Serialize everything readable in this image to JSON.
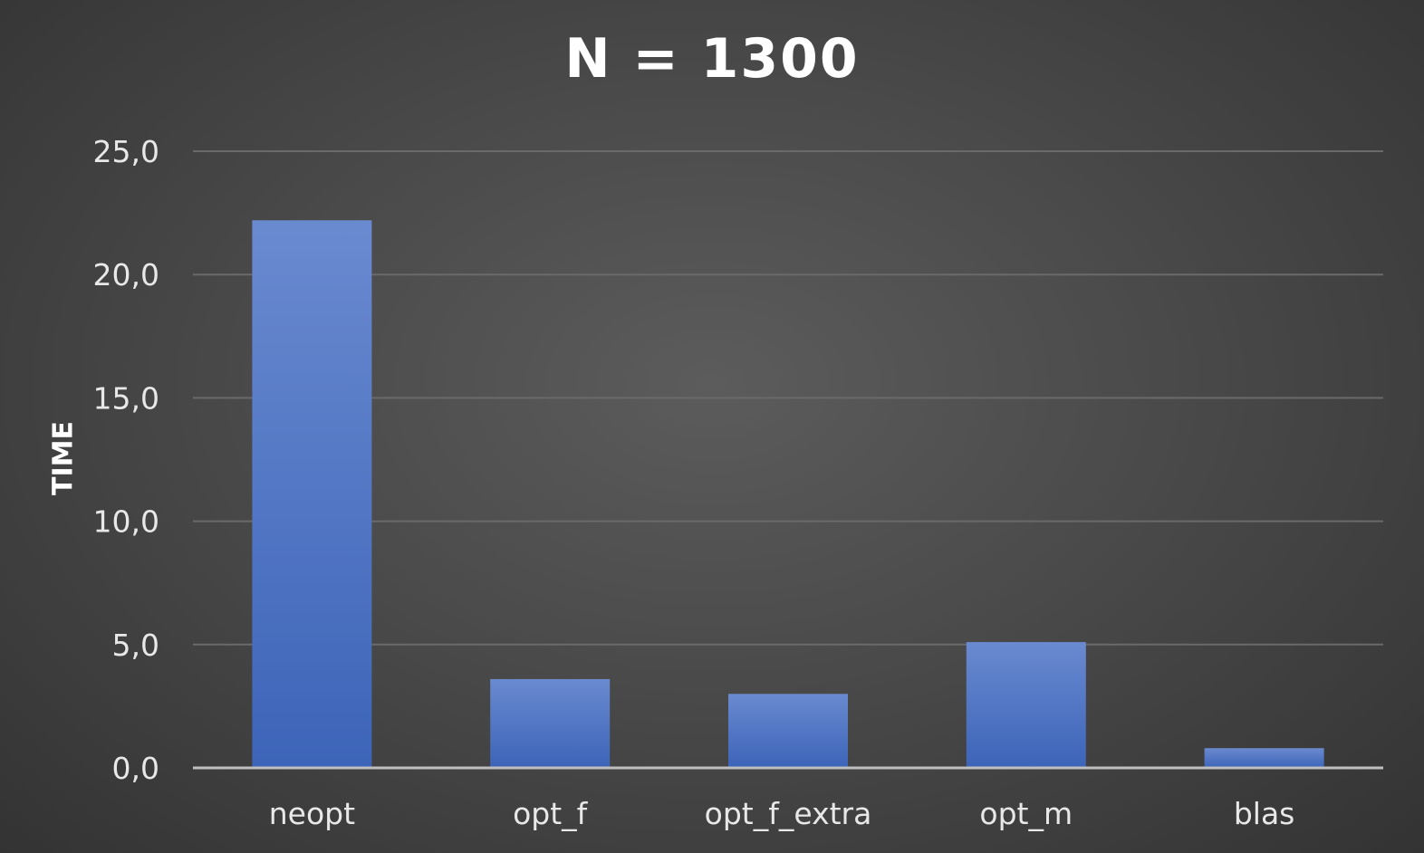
{
  "chart_data": {
    "type": "bar",
    "title": "N = 1300",
    "xlabel": "",
    "ylabel": "TIME",
    "categories": [
      "neopt",
      "opt_f",
      "opt_f_extra",
      "opt_m",
      "blas"
    ],
    "values": [
      22.2,
      3.6,
      3.0,
      5.1,
      0.8
    ],
    "ylim": [
      0,
      25
    ],
    "yticks": [
      "0,0",
      "5,0",
      "10,0",
      "15,0",
      "20,0",
      "25,0"
    ],
    "grid": true,
    "legend": "none",
    "colors": {
      "bar_top": "#6a8ad0",
      "bar_bottom": "#3c64b8",
      "grid": "#6a6a6a",
      "axis": "#bfbfbf"
    }
  }
}
